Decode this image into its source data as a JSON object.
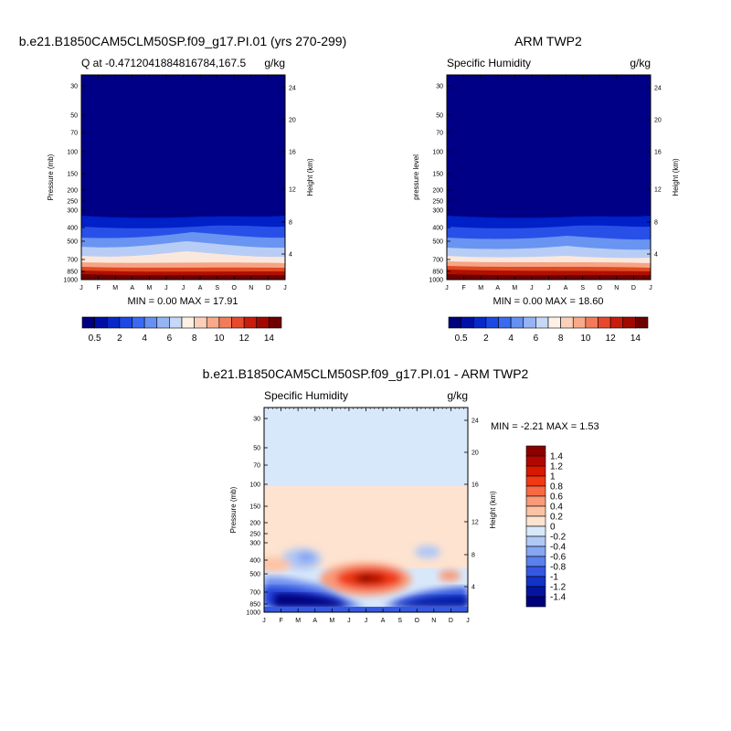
{
  "months": [
    "J",
    "F",
    "M",
    "A",
    "M",
    "J",
    "J",
    "A",
    "S",
    "O",
    "N",
    "D",
    "J"
  ],
  "pressure_ticks": [
    "30",
    "50",
    "70",
    "100",
    "150",
    "200",
    "250",
    "300",
    "400",
    "500",
    "700",
    "850",
    "1000"
  ],
  "height_ticks": [
    "24",
    "20",
    "16",
    "12",
    "8",
    "4"
  ],
  "panels": [
    {
      "main_title": "b.e21.B1850CAM5CLM50SP.f09_g17.PI.01 (yrs 270-299)",
      "left_title": "Q at -0.4712041884816784,167.5",
      "right_title": "g/kg",
      "ylabel": "Pressure (mb)",
      "ylabel_right": "Height (km)",
      "stats": "MIN =   0.00 MAX =  17.91",
      "field": "model"
    },
    {
      "main_title": "ARM TWP2",
      "left_title": "Specific Humidity",
      "right_title": "g/kg",
      "ylabel": "pressure level",
      "ylabel_right": "Height (km)",
      "stats": "MIN =   0.00 MAX =  18.60",
      "field": "obs"
    },
    {
      "main_title": "b.e21.B1850CAM5CLM50SP.f09_g17.PI.01 - ARM TWP2",
      "left_title": "Specific Humidity",
      "right_title": "g/kg",
      "ylabel": "Pressure (mb)",
      "ylabel_right": "Height (km)",
      "stats": "MIN =  -2.21 MAX =   1.53",
      "field": "diff"
    }
  ],
  "colorbar_q": {
    "labels": [
      "0.5",
      "2",
      "4",
      "6",
      "8",
      "10",
      "12",
      "14"
    ],
    "colors": [
      "#00007f",
      "#0010a6",
      "#0828c8",
      "#1c49e6",
      "#3a6af0",
      "#6690f2",
      "#95b4f4",
      "#c6d8f8",
      "#fff0e6",
      "#fcd0b8",
      "#f8a98a",
      "#f27c5a",
      "#e8492c",
      "#c81c0c",
      "#a00800",
      "#6e0000"
    ]
  },
  "colorbar_diff": {
    "labels": [
      "1.4",
      "1.2",
      "1",
      "0.8",
      "0.6",
      "0.4",
      "0.2",
      "0",
      "-0.2",
      "-0.4",
      "-0.6",
      "-0.8",
      "-1",
      "-1.2",
      "-1.4"
    ],
    "colors": [
      "#8a0000",
      "#b00800",
      "#d81800",
      "#f03a14",
      "#f86a44",
      "#fa9a78",
      "#fcc2a4",
      "#fde3d0",
      "#d8e8fb",
      "#b0c8f6",
      "#86a6f2",
      "#5a80ec",
      "#3458e0",
      "#1232c8",
      "#0414a0",
      "#00007a"
    ]
  },
  "chart_data": [
    {
      "type": "heatmap",
      "title": "Q at -0.4712041884816784,167.5",
      "units": "g/kg",
      "x": [
        "J",
        "F",
        "M",
        "A",
        "M",
        "J",
        "J",
        "A",
        "S",
        "O",
        "N",
        "D",
        "J"
      ],
      "y_pressure_mb": [
        30,
        50,
        70,
        100,
        150,
        200,
        250,
        300,
        400,
        500,
        700,
        850,
        1000
      ],
      "min": 0.0,
      "max": 17.91
    },
    {
      "type": "heatmap",
      "title": "Specific Humidity",
      "units": "g/kg",
      "x": [
        "J",
        "F",
        "M",
        "A",
        "M",
        "J",
        "J",
        "A",
        "S",
        "O",
        "N",
        "D",
        "J"
      ],
      "y_pressure_mb": [
        30,
        50,
        70,
        100,
        150,
        200,
        250,
        300,
        400,
        500,
        700,
        850,
        1000
      ],
      "min": 0.0,
      "max": 18.6
    },
    {
      "type": "heatmap",
      "title": "Specific Humidity",
      "units": "g/kg",
      "x": [
        "J",
        "F",
        "M",
        "A",
        "M",
        "J",
        "J",
        "A",
        "S",
        "O",
        "N",
        "D",
        "J"
      ],
      "y_pressure_mb": [
        30,
        50,
        70,
        100,
        150,
        200,
        250,
        300,
        400,
        500,
        700,
        850,
        1000
      ],
      "min": -2.21,
      "max": 1.53
    }
  ]
}
